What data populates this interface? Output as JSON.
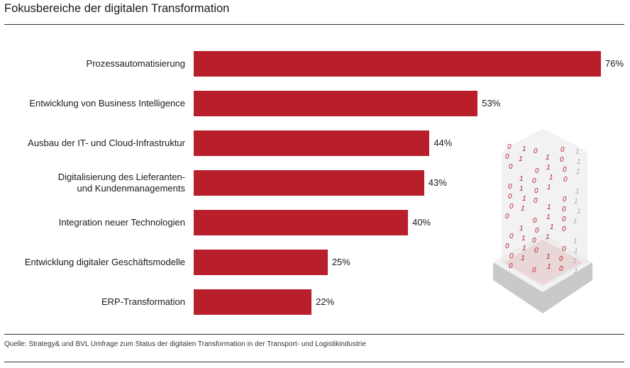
{
  "title": "Fokusbereiche der digitalen Transformation",
  "source": "Quelle: Strategy& und BVL Umfrage zum Status der digitalen Transformation in der Transport- und Logistikindustrie",
  "chart_data": {
    "type": "bar",
    "orientation": "horizontal",
    "categories": [
      [
        "Prozessautomatisierung"
      ],
      [
        "Entwicklung von Business Intelligence"
      ],
      [
        "Ausbau der IT- und Cloud-Infrastruktur"
      ],
      [
        "Digitalisierung des Lieferanten-",
        "und Kundenmanagements"
      ],
      [
        "Integration neuer Technologien"
      ],
      [
        "Entwicklung digitaler Geschäftsmodelle"
      ],
      [
        "ERP-Transformation"
      ]
    ],
    "values": [
      76,
      53,
      44,
      43,
      40,
      25,
      22
    ],
    "value_labels": [
      "76%",
      "53%",
      "44%",
      "43%",
      "40%",
      "25%",
      "22%"
    ],
    "unit": "%",
    "xlim": [
      0,
      76
    ],
    "bar_color": "#b91f2b",
    "grid": false
  }
}
